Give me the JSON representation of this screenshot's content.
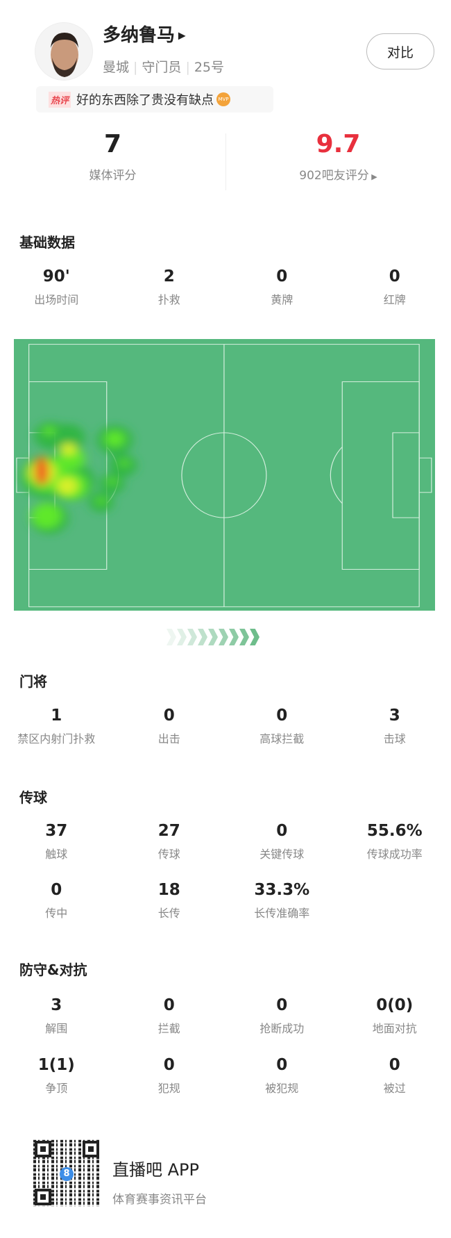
{
  "player": {
    "name": "多纳鲁马",
    "team": "曼城",
    "position": "守门员",
    "number": "25号",
    "compare_label": "对比"
  },
  "hot_comment": {
    "tag": "热评",
    "text": "好的东西除了贵没有缺点",
    "badge": "MVP"
  },
  "ratings": {
    "media_value": "7",
    "media_label": "媒体评分",
    "fan_value": "9.7",
    "fan_label": "902吧友评分",
    "fan_color": "#e8303d"
  },
  "sections": [
    {
      "title": "基础数据",
      "rows": [
        [
          {
            "v": "90'",
            "l": "出场时间"
          },
          {
            "v": "2",
            "l": "扑救"
          },
          {
            "v": "0",
            "l": "黄牌"
          },
          {
            "v": "0",
            "l": "红牌"
          }
        ]
      ]
    },
    {
      "title": "门将",
      "rows": [
        [
          {
            "v": "1",
            "l": "禁区内射门扑救"
          },
          {
            "v": "0",
            "l": "出击"
          },
          {
            "v": "0",
            "l": "高球拦截"
          },
          {
            "v": "3",
            "l": "击球"
          }
        ]
      ]
    },
    {
      "title": "传球",
      "rows": [
        [
          {
            "v": "37",
            "l": "触球"
          },
          {
            "v": "27",
            "l": "传球"
          },
          {
            "v": "0",
            "l": "关键传球"
          },
          {
            "v": "55.6%",
            "l": "传球成功率"
          }
        ],
        [
          {
            "v": "0",
            "l": "传中"
          },
          {
            "v": "18",
            "l": "长传"
          },
          {
            "v": "33.3%",
            "l": "长传准确率"
          }
        ]
      ]
    },
    {
      "title": "防守&对抗",
      "rows": [
        [
          {
            "v": "3",
            "l": "解围"
          },
          {
            "v": "0",
            "l": "拦截"
          },
          {
            "v": "0",
            "l": "抢断成功"
          },
          {
            "v": "0(0)",
            "l": "地面对抗"
          }
        ],
        [
          {
            "v": "1(1)",
            "l": "争顶"
          },
          {
            "v": "0",
            "l": "犯规"
          },
          {
            "v": "0",
            "l": "被犯规"
          },
          {
            "v": "0",
            "l": "被过"
          }
        ]
      ]
    }
  ],
  "heatmap": {
    "pitch_color": "#55b87d",
    "attack_direction": "right"
  },
  "footer": {
    "app_name": "直播吧 APP",
    "tagline": "体育赛事资讯平台",
    "qr_logo": "8"
  }
}
